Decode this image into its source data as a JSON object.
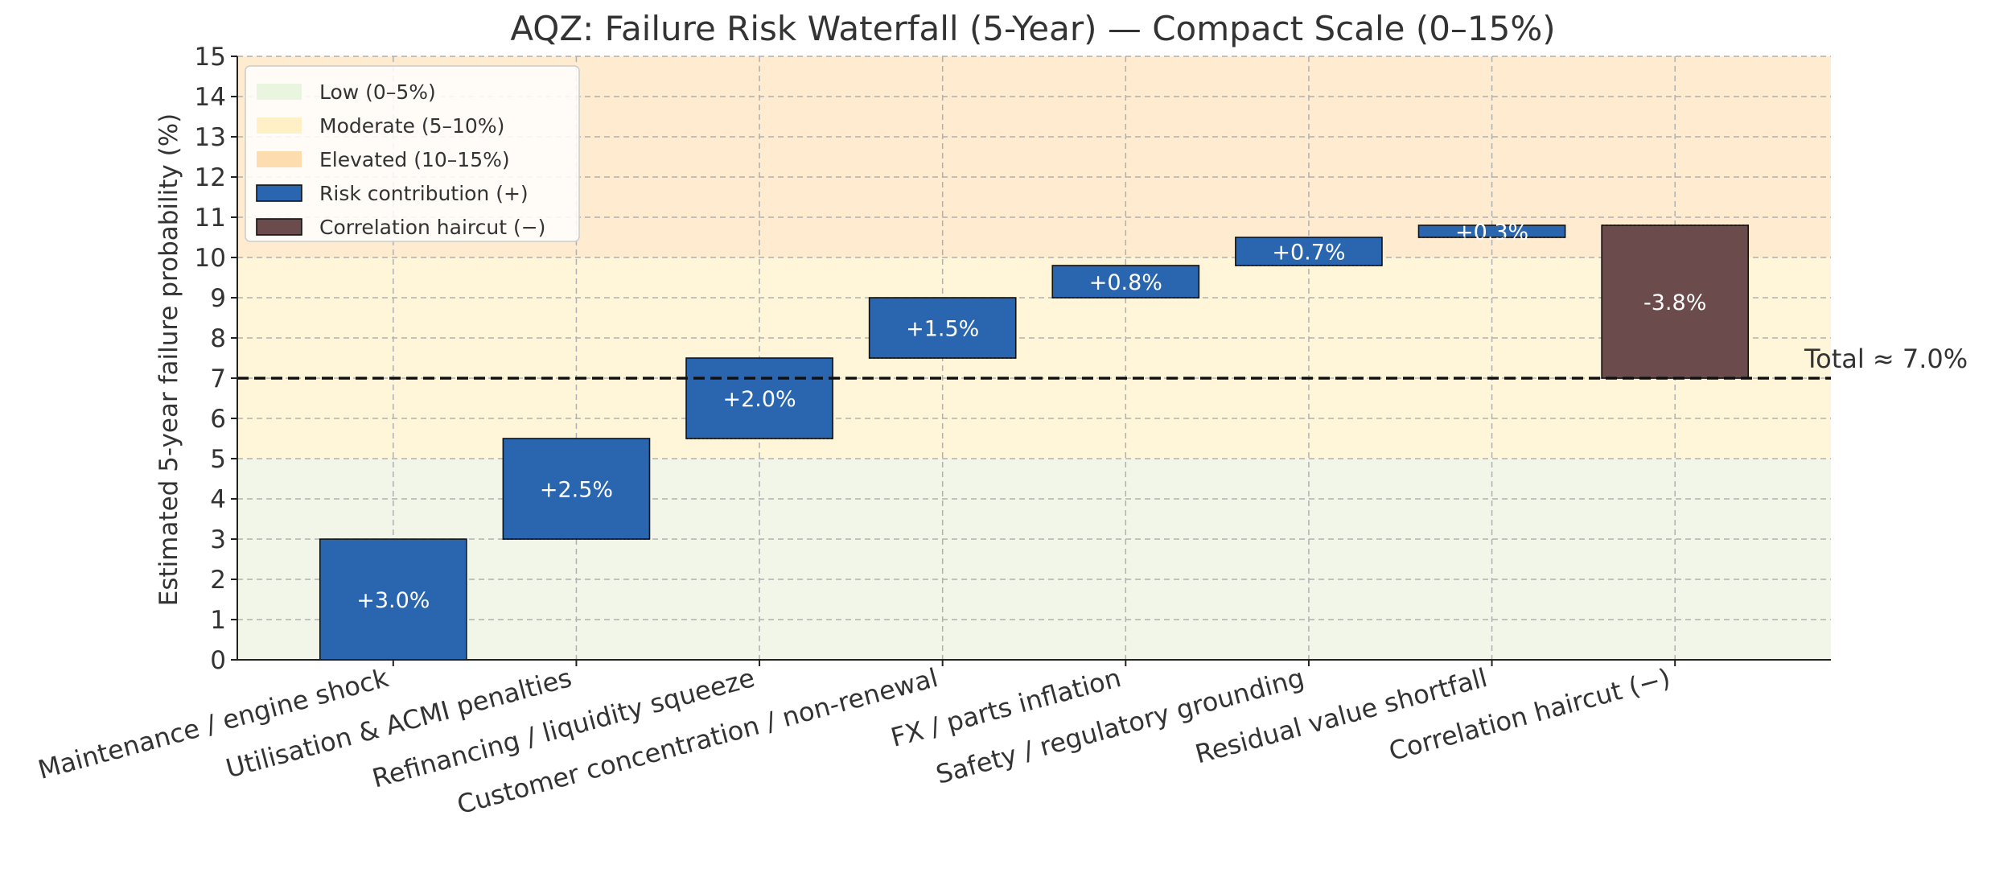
{
  "chart_data": {
    "type": "bar",
    "subtype": "waterfall",
    "title": "AQZ: Failure Risk Waterfall (5-Year) — Compact Scale (0–15%)",
    "xlabel": "",
    "ylabel": "Estimated 5-year failure probability (%)",
    "ylim": [
      0,
      15
    ],
    "yticks": [
      "0",
      "1",
      "2",
      "3",
      "4",
      "5",
      "6",
      "7",
      "8",
      "9",
      "10",
      "11",
      "12",
      "13",
      "14",
      "15"
    ],
    "grid": true,
    "legend_position": "top-left",
    "categories": [
      "Maintenance / engine shock",
      "Utilisation & ACMI penalties",
      "Refinancing / liquidity squeeze",
      "Customer concentration / non-renewal",
      "FX / parts inflation",
      "Safety / regulatory grounding",
      "Residual value shortfall",
      "Correlation haircut (−)"
    ],
    "values": [
      3.0,
      2.5,
      2.0,
      1.5,
      0.8,
      0.7,
      0.3,
      -3.8
    ],
    "bar_labels": [
      "+3.0%",
      "+2.5%",
      "+2.0%",
      "+1.5%",
      "+0.8%",
      "+0.7%",
      "+0.3%",
      "-3.8%"
    ],
    "bar_kinds": [
      "pos",
      "pos",
      "pos",
      "pos",
      "pos",
      "pos",
      "pos",
      "neg"
    ],
    "bands": [
      {
        "label": "Low (0–5%)",
        "from": 0,
        "to": 5,
        "color": "#f1f6e8"
      },
      {
        "label": "Moderate (5–10%)",
        "from": 5,
        "to": 10,
        "color": "#fff6da"
      },
      {
        "label": "Elevated (10–15%)",
        "from": 10,
        "to": 15,
        "color": "#ffebcf"
      }
    ],
    "legend": [
      {
        "label": "Low (0–5%)",
        "color": "#eaf5e0",
        "kind": "band"
      },
      {
        "label": "Moderate (5–10%)",
        "color": "#fff0c8",
        "kind": "band"
      },
      {
        "label": "Elevated (10–15%)",
        "color": "#fddcb0",
        "kind": "band"
      },
      {
        "label": "Risk contribution (+)",
        "color": "#2a66b0",
        "kind": "bar"
      },
      {
        "label": "Correlation haircut (−)",
        "color": "#6b4b4b",
        "kind": "bar"
      }
    ],
    "total": 7.0,
    "total_label": "Total ≈ 7.0%",
    "colors": {
      "positive": "#2a66b0",
      "negative": "#6b4b4b",
      "total_line": "#111111",
      "axis": "#222222"
    }
  }
}
